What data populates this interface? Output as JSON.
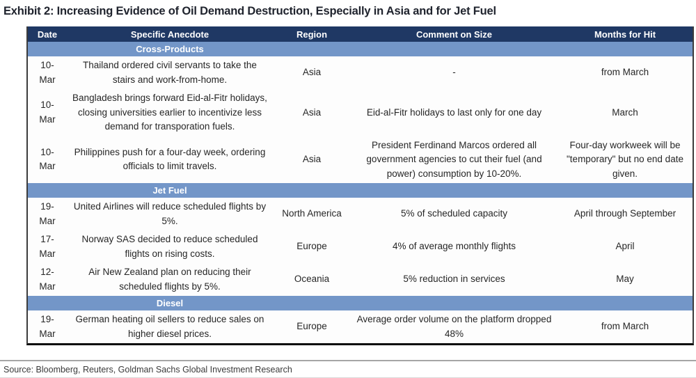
{
  "title": "Exhibit 2: Increasing Evidence of Oil Demand Destruction, Especially in Asia and for Jet Fuel",
  "source": "Source: Bloomberg, Reuters, Goldman Sachs Global Investment Research",
  "colors": {
    "header_bg": "#1F3864",
    "section_bg": "#7396C8",
    "header_text": "#ffffff",
    "body_text": "#262626"
  },
  "table": {
    "columns": [
      "Date",
      "Specific Anecdote",
      "Region",
      "Comment on Size",
      "Months for Hit"
    ],
    "rows": [
      {
        "type": "section",
        "label": "Cross-Products"
      },
      {
        "type": "data",
        "date": "10-Mar",
        "anecdote": "Thailand ordered civil servants to take the stairs and work-from-home.",
        "region": "Asia",
        "comment": "-",
        "months": "from March"
      },
      {
        "type": "data",
        "date": "10-Mar",
        "anecdote": "Bangladesh brings forward Eid-al-Fitr holidays, closing universities earlier to incentivize less demand for transporation fuels.",
        "region": "Asia",
        "comment": "Eid-al-Fitr holidays to last only for one day",
        "months": "March"
      },
      {
        "type": "data",
        "date": "10-Mar",
        "anecdote": "Philippines push for a four-day week, ordering officials to limit travels.",
        "region": "Asia",
        "comment": "President Ferdinand Marcos ordered all government agencies to cut their fuel (and power) consumption by 10-20%.",
        "months": "Four-day workweek will be \"temporary\" but no end date given."
      },
      {
        "type": "section",
        "label": "Jet Fuel"
      },
      {
        "type": "data",
        "date": "19-Mar",
        "anecdote": "United Airlines will reduce scheduled flights by 5%.",
        "region": "North America",
        "comment": "5% of scheduled capacity",
        "months": "April through September"
      },
      {
        "type": "data",
        "date": "17-Mar",
        "anecdote": "Norway SAS decided to reduce scheduled flights on rising costs.",
        "region": "Europe",
        "comment": "4% of average monthly flights",
        "months": "April"
      },
      {
        "type": "data",
        "date": "12-Mar",
        "anecdote": "Air New Zealand plan on reducing their scheduled flights by 5%.",
        "region": "Oceania",
        "comment": "5% reduction in services",
        "months": "May"
      },
      {
        "type": "section",
        "label": "Diesel"
      },
      {
        "type": "data",
        "date": "19-Mar",
        "anecdote": "German heating oil sellers to reduce sales on higher diesel prices.",
        "region": "Europe",
        "comment": "Average order volume on the platform dropped 48%",
        "months": "from March"
      }
    ]
  }
}
